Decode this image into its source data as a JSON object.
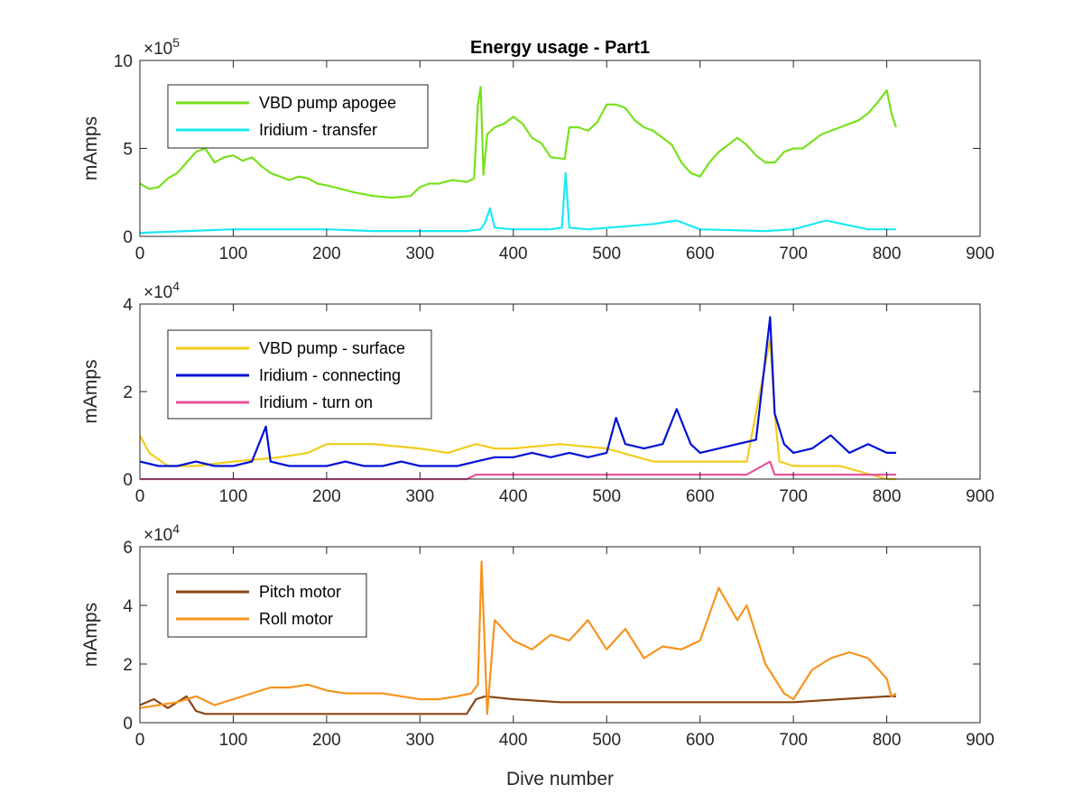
{
  "chart_data": [
    {
      "type": "line",
      "title": "Energy usage - Part1",
      "xlabel": "",
      "ylabel": "mAmps",
      "y_exponent": "×10^5",
      "exp_base": "×10",
      "exp_power": "5",
      "xlim": [
        0,
        900
      ],
      "ylim": [
        0,
        10
      ],
      "xticks": [
        0,
        100,
        200,
        300,
        400,
        500,
        600,
        700,
        800,
        900
      ],
      "yticks": [
        0,
        5,
        10
      ],
      "legend_position": "top-left",
      "series": [
        {
          "name": "VBD pump apogee",
          "color": "#77e11c",
          "x": [
            0,
            10,
            20,
            30,
            40,
            50,
            60,
            70,
            80,
            90,
            100,
            110,
            120,
            130,
            140,
            150,
            160,
            170,
            180,
            190,
            200,
            215,
            230,
            250,
            270,
            290,
            300,
            310,
            320,
            335,
            350,
            358,
            362,
            365,
            368,
            372,
            380,
            390,
            400,
            410,
            420,
            430,
            440,
            455,
            460,
            470,
            480,
            490,
            500,
            510,
            520,
            530,
            540,
            550,
            560,
            570,
            580,
            590,
            600,
            610,
            620,
            630,
            640,
            650,
            660,
            670,
            680,
            690,
            700,
            710,
            720,
            730,
            740,
            750,
            760,
            770,
            780,
            790,
            800,
            805,
            810
          ],
          "values": [
            3.0,
            2.7,
            2.8,
            3.3,
            3.6,
            4.2,
            4.8,
            5.0,
            4.2,
            4.5,
            4.6,
            4.3,
            4.5,
            4.0,
            3.6,
            3.4,
            3.2,
            3.4,
            3.3,
            3.0,
            2.9,
            2.7,
            2.5,
            2.3,
            2.2,
            2.3,
            2.8,
            3.0,
            3.0,
            3.2,
            3.1,
            3.3,
            7.5,
            8.5,
            3.5,
            5.8,
            6.2,
            6.4,
            6.8,
            6.4,
            5.6,
            5.3,
            4.5,
            4.4,
            6.2,
            6.2,
            6.0,
            6.5,
            7.5,
            7.5,
            7.3,
            6.6,
            6.2,
            6.0,
            5.6,
            5.2,
            4.2,
            3.6,
            3.4,
            4.2,
            4.8,
            5.2,
            5.6,
            5.2,
            4.6,
            4.2,
            4.2,
            4.8,
            5.0,
            5.0,
            5.4,
            5.8,
            6.0,
            6.2,
            6.4,
            6.6,
            7.0,
            7.6,
            8.3,
            7.0,
            6.2
          ]
        },
        {
          "name": "Iridium - transfer",
          "color": "#1ce9f5",
          "x": [
            0,
            50,
            100,
            150,
            200,
            250,
            300,
            350,
            365,
            370,
            375,
            380,
            400,
            440,
            452,
            456,
            460,
            480,
            550,
            575,
            600,
            670,
            700,
            735,
            780,
            810
          ],
          "values": [
            0.2,
            0.3,
            0.4,
            0.4,
            0.4,
            0.3,
            0.3,
            0.3,
            0.4,
            0.8,
            1.6,
            0.5,
            0.4,
            0.4,
            0.5,
            3.6,
            0.5,
            0.4,
            0.7,
            0.9,
            0.4,
            0.3,
            0.4,
            0.9,
            0.4,
            0.4
          ]
        }
      ]
    },
    {
      "type": "line",
      "title": "",
      "xlabel": "",
      "ylabel": "mAmps",
      "y_exponent": "×10^4",
      "exp_base": "×10",
      "exp_power": "4",
      "xlim": [
        0,
        900
      ],
      "ylim": [
        0,
        4
      ],
      "xticks": [
        0,
        100,
        200,
        300,
        400,
        500,
        600,
        700,
        800,
        900
      ],
      "yticks": [
        0,
        2,
        4
      ],
      "legend_position": "top-left",
      "series": [
        {
          "name": "VBD pump - surface",
          "color": "#f2cc1a",
          "x": [
            0,
            10,
            30,
            60,
            100,
            150,
            180,
            200,
            250,
            300,
            330,
            360,
            380,
            400,
            450,
            500,
            550,
            600,
            650,
            675,
            680,
            685,
            700,
            750,
            800,
            810
          ],
          "values": [
            1.0,
            0.6,
            0.3,
            0.3,
            0.4,
            0.5,
            0.6,
            0.8,
            0.8,
            0.7,
            0.6,
            0.8,
            0.7,
            0.7,
            0.8,
            0.7,
            0.4,
            0.4,
            0.4,
            3.2,
            1.5,
            0.4,
            0.3,
            0.3,
            0.0,
            0.0
          ]
        },
        {
          "name": "Iridium - connecting",
          "color": "#0010d6",
          "x": [
            0,
            20,
            40,
            60,
            80,
            100,
            120,
            135,
            140,
            160,
            180,
            200,
            220,
            240,
            260,
            280,
            300,
            320,
            340,
            360,
            380,
            400,
            420,
            440,
            460,
            480,
            500,
            510,
            520,
            540,
            560,
            575,
            590,
            600,
            620,
            640,
            660,
            675,
            680,
            690,
            700,
            720,
            740,
            760,
            780,
            800,
            810
          ],
          "values": [
            0.4,
            0.3,
            0.3,
            0.4,
            0.3,
            0.3,
            0.4,
            1.2,
            0.4,
            0.3,
            0.3,
            0.3,
            0.4,
            0.3,
            0.3,
            0.4,
            0.3,
            0.3,
            0.3,
            0.4,
            0.5,
            0.5,
            0.6,
            0.5,
            0.6,
            0.5,
            0.6,
            1.4,
            0.8,
            0.7,
            0.8,
            1.6,
            0.8,
            0.6,
            0.7,
            0.8,
            0.9,
            3.7,
            1.5,
            0.8,
            0.6,
            0.7,
            1.0,
            0.6,
            0.8,
            0.6,
            0.6
          ]
        },
        {
          "name": "Iridium - turn on",
          "color": "#e8539c",
          "x": [
            0,
            50,
            100,
            150,
            200,
            250,
            300,
            350,
            360,
            400,
            450,
            500,
            550,
            600,
            650,
            675,
            680,
            700,
            750,
            800,
            810
          ],
          "values": [
            0.0,
            0.0,
            0.0,
            0.0,
            0.0,
            0.0,
            0.0,
            0.0,
            0.1,
            0.1,
            0.1,
            0.1,
            0.1,
            0.1,
            0.1,
            0.4,
            0.1,
            0.1,
            0.1,
            0.1,
            0.1
          ]
        }
      ]
    },
    {
      "type": "line",
      "title": "",
      "xlabel": "Dive number",
      "ylabel": "mAmps",
      "y_exponent": "×10^4",
      "exp_base": "×10",
      "exp_power": "4",
      "xlim": [
        0,
        900
      ],
      "ylim": [
        0,
        6
      ],
      "xticks": [
        0,
        100,
        200,
        300,
        400,
        500,
        600,
        700,
        800,
        900
      ],
      "yticks": [
        0,
        2,
        4,
        6
      ],
      "legend_position": "top-left",
      "series": [
        {
          "name": "Pitch motor",
          "color": "#8b4513",
          "x": [
            0,
            15,
            30,
            50,
            60,
            70,
            100,
            150,
            200,
            250,
            300,
            350,
            360,
            370,
            400,
            450,
            500,
            550,
            600,
            650,
            700,
            750,
            800,
            810
          ],
          "values": [
            0.6,
            0.8,
            0.5,
            0.9,
            0.4,
            0.3,
            0.3,
            0.3,
            0.3,
            0.3,
            0.3,
            0.3,
            0.8,
            0.9,
            0.8,
            0.7,
            0.7,
            0.7,
            0.7,
            0.7,
            0.7,
            0.8,
            0.9,
            0.9
          ]
        },
        {
          "name": "Roll motor",
          "color": "#f7931e",
          "x": [
            0,
            20,
            40,
            60,
            80,
            100,
            120,
            140,
            160,
            180,
            200,
            220,
            240,
            260,
            280,
            300,
            320,
            340,
            355,
            362,
            366,
            372,
            380,
            400,
            420,
            440,
            460,
            480,
            500,
            520,
            540,
            560,
            580,
            600,
            620,
            640,
            650,
            670,
            690,
            700,
            720,
            740,
            760,
            780,
            800,
            805,
            810
          ],
          "values": [
            0.5,
            0.6,
            0.7,
            0.9,
            0.6,
            0.8,
            1.0,
            1.2,
            1.2,
            1.3,
            1.1,
            1.0,
            1.0,
            1.0,
            0.9,
            0.8,
            0.8,
            0.9,
            1.0,
            1.3,
            5.5,
            0.3,
            3.5,
            2.8,
            2.5,
            3.0,
            2.8,
            3.5,
            2.5,
            3.2,
            2.2,
            2.6,
            2.5,
            2.8,
            4.6,
            3.5,
            4.0,
            2.0,
            1.0,
            0.8,
            1.8,
            2.2,
            2.4,
            2.2,
            1.5,
            0.9,
            1.0
          ]
        }
      ]
    }
  ]
}
